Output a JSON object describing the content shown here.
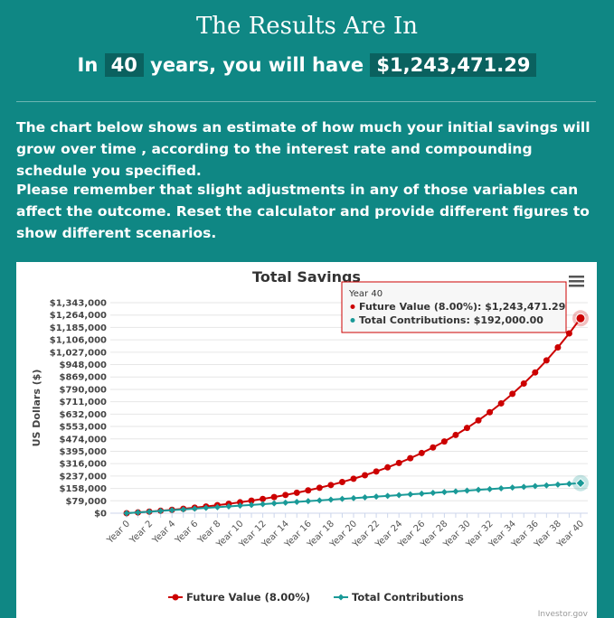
{
  "header": {
    "title": "The Results Are In",
    "prefix": "In",
    "years": "40",
    "middle": "years, you will have",
    "total": "$1,243,471.29"
  },
  "paragraphs": [
    "The chart below shows an estimate of how much your initial savings will grow over time , according to the interest rate and compounding schedule you specified.",
    "Please remember that slight adjustments in any of those variables can affect the outcome. Reset the calculator and provide different figures to show different scenarios."
  ],
  "chart_data": {
    "type": "line",
    "title": "Total Savings",
    "y_label": "US Dollars ($)",
    "categories": [
      "Year 0",
      null,
      "Year 2",
      null,
      "Year 4",
      null,
      "Year 6",
      null,
      "Year 8",
      null,
      "Year 10",
      null,
      "Year 12",
      null,
      "Year 14",
      null,
      "Year 16",
      null,
      "Year 18",
      null,
      "Year 20",
      null,
      "Year 22",
      null,
      "Year 24",
      null,
      "Year 26",
      null,
      "Year 28",
      null,
      "Year 30",
      null,
      "Year 32",
      null,
      "Year 34",
      null,
      "Year 36",
      null,
      "Year 38",
      null,
      "Year 40"
    ],
    "series": [
      {
        "name": "Future Value (8.00%)",
        "color": "#cc0000",
        "marker": "circle",
        "values": [
          0,
          4800,
          9984,
          15583,
          21629,
          28160,
          35212,
          42829,
          51056,
          59940,
          69536,
          79898,
          91090,
          103177,
          116232,
          130330,
          145557,
          162001,
          179761,
          198942,
          219657,
          242030,
          266192,
          292288,
          320471,
          350909,
          383781,
          419284,
          457626,
          499037,
          543759,
          592060,
          644225,
          700563,
          761408,
          827121,
          898090,
          974738,
          1057517,
          1146918,
          1243471.29
        ]
      },
      {
        "name": "Total Contributions",
        "color": "#1a9a98",
        "marker": "diamond",
        "values": [
          0,
          4800,
          9600,
          14400,
          19200,
          24000,
          28800,
          33600,
          38400,
          43200,
          48000,
          52800,
          57600,
          62400,
          67200,
          72000,
          76800,
          81600,
          86400,
          91200,
          96000,
          100800,
          105600,
          110400,
          115200,
          120000,
          124800,
          129600,
          134400,
          139200,
          144000,
          148800,
          153600,
          158400,
          163200,
          168000,
          172800,
          177600,
          182400,
          187200,
          192000
        ]
      }
    ],
    "ylim": [
      0,
      1343000
    ],
    "yticks": [
      {
        "value": 0,
        "label": "$0"
      },
      {
        "value": 79000,
        "label": "$79,000"
      },
      {
        "value": 158000,
        "label": "$158,000"
      },
      {
        "value": 237000,
        "label": "$237,000"
      },
      {
        "value": 316000,
        "label": "$316,000"
      },
      {
        "value": 395000,
        "label": "$395,000"
      },
      {
        "value": 474000,
        "label": "$474,000"
      },
      {
        "value": 553000,
        "label": "$553,000"
      },
      {
        "value": 632000,
        "label": "$632,000"
      },
      {
        "value": 711000,
        "label": "$711,000"
      },
      {
        "value": 790000,
        "label": "$790,000"
      },
      {
        "value": 869000,
        "label": "$869,000"
      },
      {
        "value": 948000,
        "label": "$948,000"
      },
      {
        "value": 1027000,
        "label": "$1,027,000"
      },
      {
        "value": 1106000,
        "label": "$1,106,000"
      },
      {
        "value": 1185000,
        "label": "$1,185,000"
      },
      {
        "value": 1264000,
        "label": "$1,264,000"
      },
      {
        "value": 1343000,
        "label": "$1,343,000"
      }
    ],
    "grid": true,
    "legend": "bottom"
  },
  "tooltip": {
    "title": "Year 40",
    "lines": [
      "Future Value (8.00%): $1,243,471.29",
      "Total Contributions: $192,000.00"
    ]
  },
  "credit": "Investor.gov"
}
